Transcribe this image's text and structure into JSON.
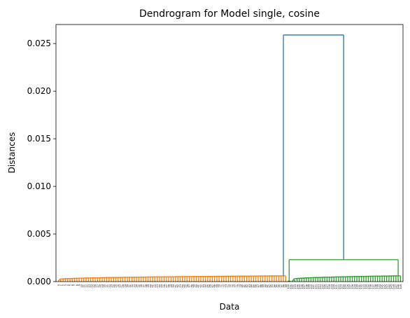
{
  "chart_data": {
    "type": "dendrogram",
    "title": "Dendrogram for Model single, cosine",
    "xlabel": "Data",
    "ylabel": "Distances",
    "ylim": [
      0,
      0.027
    ],
    "yticks": [
      "0.000",
      "0.005",
      "0.010",
      "0.015",
      "0.020",
      "0.025"
    ],
    "ytick_values": [
      0,
      0.005,
      0.01,
      0.015,
      0.02,
      0.025
    ],
    "grid": false,
    "legend": "none",
    "leaf_count": 150,
    "root_link": {
      "height": 0.0259,
      "color": "#1f77b4"
    },
    "clusters": [
      {
        "name": "",
        "color": "#ff7f0e",
        "leaf_range": [
          0,
          99
        ],
        "max_height": 0.0006
      },
      {
        "name": "",
        "color": "#2ca02c",
        "leaf_range": [
          100,
          149
        ],
        "max_height": 0.0023,
        "sub_link_height": 0.0006
      }
    ]
  }
}
